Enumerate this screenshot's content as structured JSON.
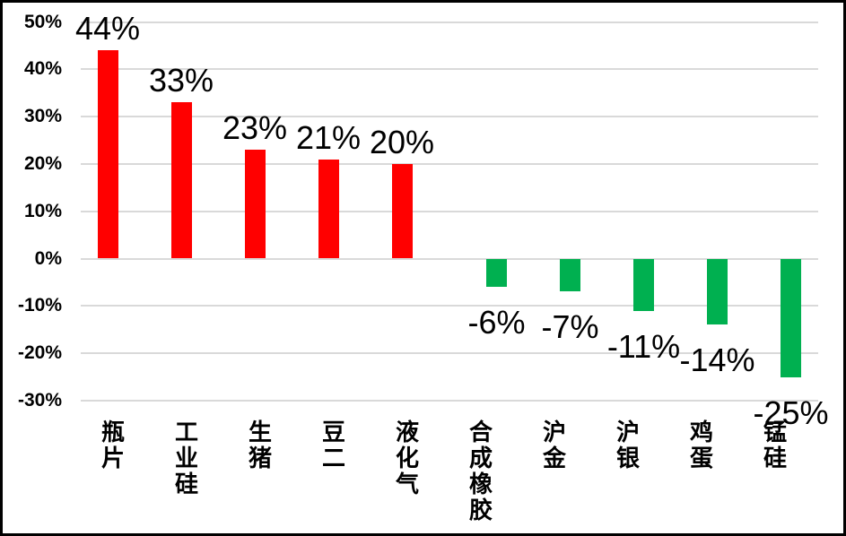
{
  "chart_data": {
    "type": "bar",
    "title": "",
    "categories": [
      "瓶片",
      "工业硅",
      "生猪",
      "豆二",
      "液化气",
      "合成橡胶",
      "沪金",
      "沪银",
      "鸡蛋",
      "锰硅"
    ],
    "values": [
      44,
      33,
      23,
      21,
      20,
      -6,
      -7,
      -11,
      -14,
      -25
    ],
    "data_labels": [
      "44%",
      "33%",
      "23%",
      "21%",
      "20%",
      "-6%",
      "-7%",
      "-11%",
      "-14%",
      "-25%"
    ],
    "y_axis": {
      "tick_labels": [
        "50%",
        "40%",
        "30%",
        "20%",
        "10%",
        "0%",
        "-10%",
        "-20%",
        "-30%"
      ],
      "tick_values": [
        50,
        40,
        30,
        20,
        10,
        0,
        -10,
        -20,
        -30
      ],
      "range": [
        -30,
        50
      ]
    },
    "grid": true,
    "legend": "none",
    "category_label_orientation": "vertical-stacked",
    "colors": {
      "positive_bar": "#ff0000",
      "negative_bar": "#00b050",
      "gridline": "#d9d9d9",
      "text": "#000000",
      "background": "#ffffff",
      "frame_border": "#000000"
    }
  }
}
